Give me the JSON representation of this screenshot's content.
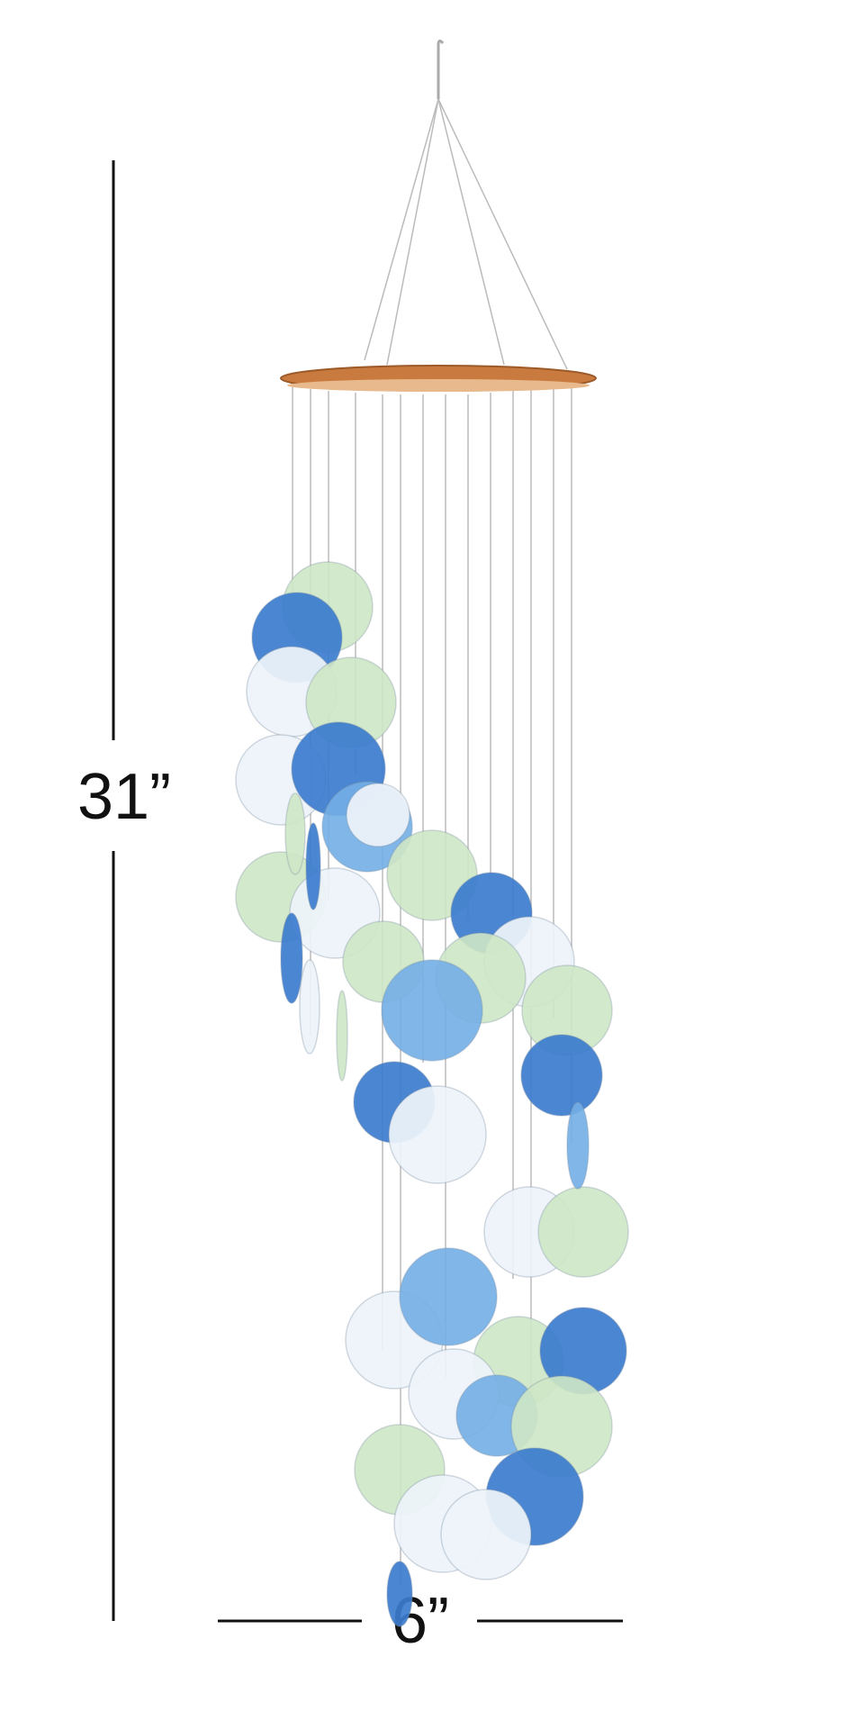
{
  "dimensions": {
    "height": "31”",
    "width": "6”"
  }
}
